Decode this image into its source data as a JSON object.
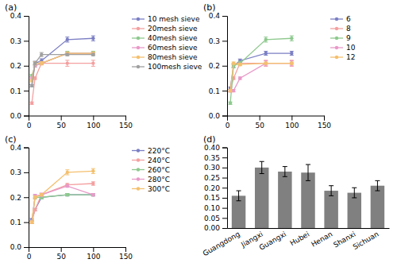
{
  "chart_data": [
    {
      "type": "line",
      "title": "(a)",
      "marker": "circle",
      "legend": "right",
      "grid": false,
      "x": [
        5,
        10,
        20,
        60,
        100
      ],
      "series": [
        {
          "name": "10 mesh sieve",
          "color": "#7b7fc4",
          "values": [
            0.12,
            0.21,
            0.22,
            0.305,
            0.31
          ],
          "yerr": [
            0.005,
            0.008,
            0.008,
            0.01,
            0.01
          ]
        },
        {
          "name": "20mesh sieve",
          "color": "#f4a0a0",
          "values": [
            0.05,
            0.15,
            0.21,
            0.21,
            0.21
          ],
          "yerr": [
            0.005,
            0.005,
            0.005,
            0.012,
            0.012
          ]
        },
        {
          "name": "40mesh sieve",
          "color": "#8ec98e",
          "values": [
            0.16,
            0.2,
            0.21,
            0.25,
            0.25
          ],
          "yerr": [
            0.005,
            0.005,
            0.005,
            0.008,
            0.008
          ]
        },
        {
          "name": "60mesh sieve",
          "color": "#e899c8",
          "values": [
            0.15,
            0.2,
            0.21,
            0.25,
            0.25
          ],
          "yerr": [
            0.005,
            0.005,
            0.005,
            0.005,
            0.005
          ]
        },
        {
          "name": "80mesh sieve",
          "color": "#f4c06e",
          "values": [
            0.14,
            0.21,
            0.21,
            0.25,
            0.25
          ],
          "yerr": [
            0.005,
            0.007,
            0.007,
            0.005,
            0.005
          ]
        },
        {
          "name": "100mesh sieve",
          "color": "#a0a0a0",
          "values": [
            0.12,
            0.21,
            0.245,
            0.245,
            0.245
          ],
          "yerr": [
            0.005,
            0.005,
            0.008,
            0.005,
            0.005
          ]
        }
      ],
      "xlim": [
        0,
        150
      ],
      "xticks": [
        0,
        50,
        100,
        150
      ],
      "ylim": [
        0.0,
        0.4
      ],
      "yticks": [
        {
          "value": 0.0,
          "label": "0.0"
        },
        0.1,
        0.2,
        0.3,
        0.4
      ]
    },
    {
      "type": "line",
      "title": "(b)",
      "marker": "circle",
      "legend": "right",
      "grid": false,
      "x": [
        5,
        10,
        20,
        60,
        100
      ],
      "series": [
        {
          "name": "6",
          "color": "#7b7fc4",
          "values": [
            0.11,
            0.2,
            0.22,
            0.25,
            0.25
          ],
          "yerr": [
            0.005,
            0.007,
            0.007,
            0.008,
            0.008
          ]
        },
        {
          "name": "8",
          "color": "#f4a0a0",
          "values": [
            0.1,
            0.15,
            0.21,
            0.21,
            0.21
          ],
          "yerr": [
            0.005,
            0.005,
            0.005,
            0.012,
            0.012
          ]
        },
        {
          "name": "9",
          "color": "#8ec98e",
          "values": [
            0.05,
            0.2,
            0.21,
            0.305,
            0.31
          ],
          "yerr": [
            0.005,
            0.008,
            0.008,
            0.01,
            0.01
          ]
        },
        {
          "name": "10",
          "color": "#e899c8",
          "values": [
            0.1,
            0.1,
            0.15,
            0.21,
            0.21
          ],
          "yerr": [
            0.005,
            0.005,
            0.005,
            0.01,
            0.01
          ]
        },
        {
          "name": "12",
          "color": "#f4c06e",
          "values": [
            0.1,
            0.21,
            0.205,
            0.21,
            0.21
          ],
          "yerr": [
            0.005,
            0.005,
            0.005,
            0.005,
            0.005
          ]
        }
      ],
      "xlim": [
        0,
        150
      ],
      "xticks": [
        0,
        50,
        100,
        150
      ],
      "ylim": [
        0.0,
        0.4
      ],
      "yticks": [
        {
          "value": 0.0,
          "label": "0.0"
        },
        0.1,
        0.2,
        0.3,
        0.4
      ]
    },
    {
      "type": "line",
      "title": "(c)",
      "marker": "circle",
      "legend": "right",
      "grid": false,
      "x": [
        5,
        10,
        20,
        60,
        100
      ],
      "series": [
        {
          "name": "220°C",
          "color": "#7b7fc4",
          "values": [
            0.11,
            0.15,
            0.2,
            0.21,
            0.21
          ],
          "yerr": [
            0.005,
            0.005,
            0.005,
            0.005,
            0.005
          ]
        },
        {
          "name": "240°C",
          "color": "#f4a0a0",
          "values": [
            0.1,
            0.15,
            0.21,
            0.25,
            0.255
          ],
          "yerr": [
            0.005,
            0.005,
            0.005,
            0.005,
            0.007
          ]
        },
        {
          "name": "260°C",
          "color": "#8ec98e",
          "values": [
            0.1,
            0.2,
            0.2,
            0.21,
            0.21
          ],
          "yerr": [
            0.005,
            0.007,
            0.007,
            0.005,
            0.005
          ]
        },
        {
          "name": "280°C",
          "color": "#e899c8",
          "values": [
            0.1,
            0.205,
            0.21,
            0.245,
            0.21
          ],
          "yerr": [
            0.005,
            0.007,
            0.007,
            0.005,
            0.005
          ]
        },
        {
          "name": "300°C",
          "color": "#f4c06e",
          "values": [
            0.1,
            0.2,
            0.21,
            0.3,
            0.305
          ],
          "yerr": [
            0.005,
            0.005,
            0.005,
            0.01,
            0.01
          ]
        }
      ],
      "xlim": [
        0,
        150
      ],
      "xticks": [
        0,
        50,
        100,
        150
      ],
      "ylim": [
        0.0,
        0.4
      ],
      "yticks": [
        {
          "value": 0.0,
          "label": "0.0"
        },
        0.1,
        0.2,
        0.3,
        0.4
      ]
    },
    {
      "type": "bar",
      "title": "(d)",
      "grid": false,
      "categories": [
        "Guangdong",
        "Jiangxi",
        "Guangxi",
        "Hubei",
        "Henan",
        "Shanxi",
        "Sichuan"
      ],
      "values": [
        0.16,
        0.3,
        0.28,
        0.275,
        0.185,
        0.175,
        0.21
      ],
      "yerr": [
        0.025,
        0.03,
        0.025,
        0.04,
        0.025,
        0.025,
        0.025
      ],
      "color": "#808080",
      "ylim": [
        0,
        0.4
      ],
      "yticks": [
        {
          "value": 0,
          "label": "0.00"
        },
        0.05,
        {
          "value": 0.1,
          "label": "0.10"
        },
        0.15,
        {
          "value": 0.2,
          "label": "0.20"
        },
        0.25,
        {
          "value": 0.3,
          "label": "0.30"
        },
        0.35,
        {
          "value": 0.4,
          "label": "0.40"
        }
      ]
    }
  ]
}
